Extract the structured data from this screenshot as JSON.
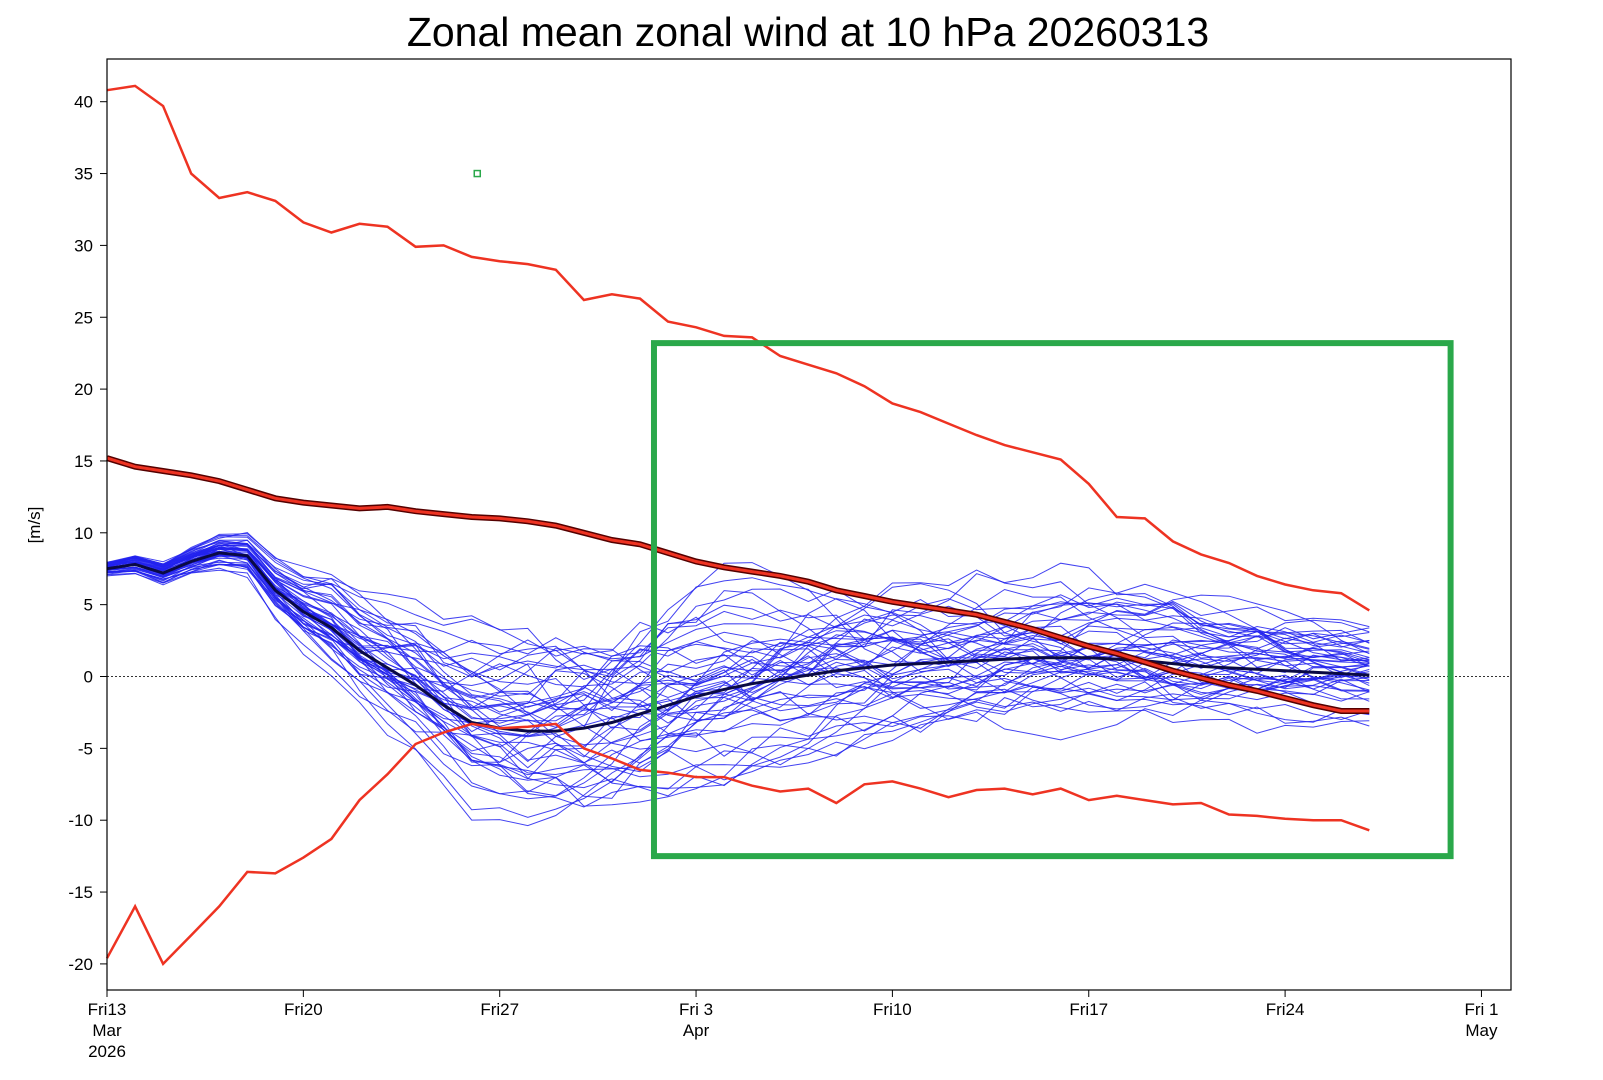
{
  "chart_data": {
    "type": "line",
    "title": "Zonal mean zonal wind at 10 hPa 20260313",
    "ylabel": "[m/s]",
    "xlabel": "",
    "x_unit": "day",
    "x_start_date": "2026-03-13",
    "xlim": [
      0,
      49.5
    ],
    "ylim": [
      -22,
      43
    ],
    "y_ticks": [
      -20,
      -15,
      -10,
      -5,
      0,
      5,
      10,
      15,
      20,
      25,
      30,
      35,
      40
    ],
    "y_tick_labels": [
      "-20",
      "-15",
      "-10",
      "-5",
      "0",
      "5",
      "10",
      "15",
      "20",
      "25",
      "30",
      "35",
      "40"
    ],
    "x_ticks": [
      {
        "x": 0,
        "lines": [
          "Fri13",
          "Mar",
          "2026"
        ]
      },
      {
        "x": 7,
        "lines": [
          "Fri20"
        ]
      },
      {
        "x": 14,
        "lines": [
          "Fri27"
        ]
      },
      {
        "x": 21,
        "lines": [
          "Fri 3",
          "Apr"
        ]
      },
      {
        "x": 28,
        "lines": [
          "Fri10"
        ]
      },
      {
        "x": 35,
        "lines": [
          "Fri17"
        ]
      },
      {
        "x": 42,
        "lines": [
          "Fri24"
        ]
      },
      {
        "x": 49,
        "lines": [
          "Fri 1",
          "May"
        ]
      }
    ],
    "zero_line": true,
    "grid": false,
    "colors": {
      "climatology": "#ee3322",
      "climatology_mean_outline": "#550000",
      "ensemble": "#2222ee",
      "ensemble_mean": "#0a0a44",
      "annotation_box": "#2aa84a"
    },
    "series": [
      {
        "role": "climatology-max",
        "x": [
          0,
          1,
          2,
          3,
          4,
          5,
          6,
          7,
          8,
          9,
          10,
          11,
          12,
          13,
          14,
          15,
          16,
          17,
          18,
          19,
          20,
          21,
          22,
          23,
          24,
          25,
          26,
          27,
          28,
          29,
          30,
          31,
          32,
          33,
          34,
          35,
          36,
          37,
          38,
          39,
          40,
          41,
          42,
          43,
          44,
          45
        ],
        "values": [
          40.8,
          41.1,
          39.7,
          35.0,
          33.3,
          33.7,
          33.1,
          31.6,
          30.9,
          31.5,
          31.3,
          29.9,
          30.0,
          29.2,
          28.9,
          28.7,
          28.3,
          26.2,
          26.6,
          26.3,
          24.7,
          24.3,
          23.7,
          23.6,
          22.3,
          21.7,
          21.1,
          20.2,
          19.0,
          18.4,
          17.6,
          16.8,
          16.1,
          15.6,
          15.1,
          13.4,
          11.1,
          11.0,
          9.4,
          8.5,
          7.9,
          7.0,
          6.4,
          6.0,
          5.8,
          4.6
        ]
      },
      {
        "role": "climatology-mean",
        "x": [
          0,
          1,
          2,
          3,
          4,
          5,
          6,
          7,
          8,
          9,
          10,
          11,
          12,
          13,
          14,
          15,
          16,
          17,
          18,
          19,
          20,
          21,
          22,
          23,
          24,
          25,
          26,
          27,
          28,
          29,
          30,
          31,
          32,
          33,
          34,
          35,
          36,
          37,
          38,
          39,
          40,
          41,
          42,
          43,
          44,
          45
        ],
        "values": [
          15.2,
          14.6,
          14.3,
          14.0,
          13.6,
          13.0,
          12.4,
          12.1,
          11.9,
          11.7,
          11.8,
          11.5,
          11.3,
          11.1,
          11.0,
          10.8,
          10.5,
          10.0,
          9.5,
          9.2,
          8.6,
          8.0,
          7.6,
          7.3,
          7.0,
          6.6,
          6.0,
          5.6,
          5.2,
          4.9,
          4.6,
          4.3,
          3.8,
          3.3,
          2.7,
          2.1,
          1.6,
          1.0,
          0.4,
          -0.1,
          -0.6,
          -1.0,
          -1.5,
          -2.0,
          -2.4,
          -2.4
        ]
      },
      {
        "role": "climatology-min",
        "x": [
          0,
          1,
          2,
          3,
          4,
          5,
          6,
          7,
          8,
          9,
          10,
          11,
          12,
          13,
          14,
          15,
          16,
          17,
          18,
          19,
          20,
          21,
          22,
          23,
          24,
          25,
          26,
          27,
          28,
          29,
          30,
          31,
          32,
          33,
          34,
          35,
          36,
          37,
          38,
          39,
          40,
          41,
          42,
          43,
          44,
          45
        ],
        "values": [
          -19.6,
          -16.0,
          -20.0,
          -18.0,
          -16.0,
          -13.6,
          -13.7,
          -12.6,
          -11.3,
          -8.6,
          -6.8,
          -4.7,
          -3.9,
          -3.3,
          -3.6,
          -3.5,
          -3.3,
          -5.0,
          -5.7,
          -6.5,
          -6.7,
          -7.0,
          -7.0,
          -7.6,
          -8.0,
          -7.8,
          -8.8,
          -7.5,
          -7.3,
          -7.8,
          -8.4,
          -7.9,
          -7.8,
          -8.2,
          -7.8,
          -8.6,
          -8.3,
          -8.6,
          -8.9,
          -8.8,
          -9.6,
          -9.7,
          -9.9,
          -10.0,
          -10.0,
          -10.7
        ]
      },
      {
        "role": "ensemble-mean",
        "x": [
          0,
          1,
          2,
          3,
          4,
          5,
          6,
          7,
          8,
          9,
          10,
          11,
          12,
          13,
          14,
          15,
          16,
          17,
          18,
          19,
          20,
          21,
          22,
          23,
          24,
          25,
          26,
          27,
          28,
          29,
          30,
          31,
          32,
          33,
          34,
          35,
          36,
          37,
          38,
          39,
          40,
          41,
          42,
          43,
          44,
          45
        ],
        "values": [
          7.5,
          7.8,
          7.2,
          8.0,
          8.6,
          8.4,
          6.0,
          4.5,
          3.4,
          1.8,
          0.6,
          -0.6,
          -2.0,
          -3.2,
          -3.6,
          -3.8,
          -3.8,
          -3.6,
          -3.2,
          -2.6,
          -2.0,
          -1.4,
          -0.9,
          -0.5,
          -0.2,
          0.1,
          0.4,
          0.6,
          0.8,
          0.9,
          1.0,
          1.1,
          1.2,
          1.3,
          1.3,
          1.3,
          1.2,
          1.1,
          0.9,
          0.7,
          0.6,
          0.5,
          0.4,
          0.3,
          0.2,
          0.1
        ]
      }
    ],
    "ensemble": {
      "member_count": 50,
      "x_end": 45,
      "description_of_spread": "members spread around ensemble mean, widest (~-14 to 10 m/s) near late March, ending between about -6 and 5 m/s"
    },
    "annotations": {
      "box": {
        "x0": 19.5,
        "x1": 47.9,
        "y0": -12.5,
        "y1": 23.2
      },
      "marker": {
        "x": 13.2,
        "y": 35
      }
    }
  }
}
